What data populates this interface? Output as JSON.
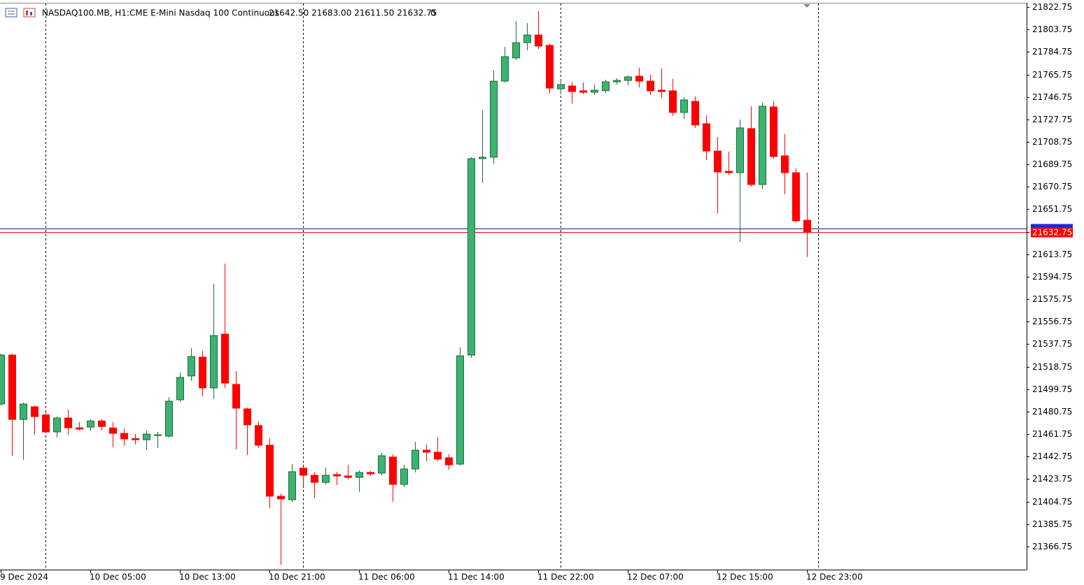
{
  "header": {
    "symbol": "NASDAQ100.MB, H1:",
    "description": "CME E-Mini Nasdaq 100 Continuous",
    "quote": "21642.50 21683.00 21611.50 21632.75",
    "volume": "0"
  },
  "chart_data": {
    "type": "candlestick",
    "up_color": "#3cb371",
    "down_color": "#ff0000",
    "categories": [
      "9 Dec 2024",
      null,
      null,
      null,
      null,
      null,
      null,
      null,
      "10 Dec 05:00",
      null,
      null,
      null,
      null,
      null,
      null,
      null,
      "10 Dec 13:00",
      null,
      null,
      null,
      null,
      null,
      null,
      null,
      "10 Dec 21:00",
      null,
      null,
      null,
      null,
      null,
      null,
      null,
      "11 Dec 06:00",
      null,
      null,
      null,
      null,
      null,
      null,
      null,
      "11 Dec 14:00",
      null,
      null,
      null,
      null,
      null,
      null,
      null,
      "11 Dec 22:00",
      null,
      null,
      null,
      null,
      null,
      null,
      null,
      "12 Dec 07:00",
      null,
      null,
      null,
      null,
      null,
      null,
      null,
      "12 Dec 15:00",
      null,
      null,
      null,
      null,
      null,
      null,
      null,
      "12 Dec 23:00"
    ],
    "open": [
      21487.2,
      21528.6,
      21474.2,
      21484.9,
      21478,
      21463.6,
      21475.4,
      21467.1,
      21467.7,
      21472.9,
      21467,
      21462.4,
      21458,
      21457,
      21460.6,
      21460,
      21490.8,
      21510.9,
      21526.8,
      21500.8,
      21546.3,
      21503.8,
      21483.1,
      21469,
      21452.4,
      21409.3,
      21406.3,
      21433,
      21427,
      21421,
      21427.6,
      21426.4,
      21425.2,
      21429.4,
      21428.8,
      21442.4,
      21419.3,
      21432.3,
      21448.2,
      21446.5,
      21441.8,
      21436.4,
      21528.6,
      21694.6,
      21695.8,
      21760.1,
      21779.7,
      21792.6,
      21799.1,
      21790.3,
      21753.6,
      21756,
      21751.9,
      21750.7,
      21752,
      21759.5,
      21760.7,
      21764.3,
      21760.1,
      21752.5,
      21751.9,
      21733.6,
      21743,
      21724.1,
      21701,
      21683.9,
      21682.7,
      21720,
      21672.7,
      21738.3,
      21697,
      21682.7,
      21642.5
    ],
    "high": [
      21529.8,
      21529.8,
      21488.4,
      21486,
      21480,
      21476.6,
      21482.5,
      21471.9,
      21474.3,
      21474.3,
      21471.9,
      21466.5,
      21462,
      21464.8,
      21463.6,
      21493.1,
      21513.8,
      21534.5,
      21532.2,
      21588.8,
      21606,
      21515,
      21484.3,
      21472.5,
      21458.3,
      21411.6,
      21436.4,
      21434,
      21429.4,
      21433.5,
      21429.9,
      21435.8,
      21431.1,
      21430.5,
      21445.9,
      21444.7,
      21435.8,
      21455.3,
      21453,
      21458.9,
      21444.7,
      21535,
      21695.8,
      21735.4,
      21769,
      21789.1,
      21810.9,
      21809.2,
      21819.2,
      21791.4,
      21761.3,
      21759.5,
      21758.9,
      21757.2,
      21761.3,
      21762.5,
      21764.9,
      21771.4,
      21765.5,
      21770.8,
      21762,
      21746.6,
      21747,
      21731.2,
      21712.9,
      21700.5,
      21727.6,
      21738.9,
      21741.8,
      21743,
      21715.3,
      21686.2,
      21683
    ],
    "low": [
      21486,
      21443.5,
      21440,
      21461,
      21462.4,
      21459,
      21461,
      21464.8,
      21464.8,
      21465,
      21450.6,
      21452,
      21453,
      21448.2,
      21450,
      21458.9,
      21489,
      21506.7,
      21493.7,
      21491.4,
      21500.8,
      21448.8,
      21444.1,
      21450,
      21399.3,
      21351.4,
      21404.5,
      21417.5,
      21407.5,
      21419.3,
      21418.7,
      21423.4,
      21412.8,
      21426.4,
      21427,
      21404.5,
      21417,
      21429.4,
      21438.8,
      21438.8,
      21431.7,
      21435.2,
      21526.2,
      21673.9,
      21690.4,
      21759,
      21777.9,
      21786.1,
      21787.3,
      21749.5,
      21748.9,
      21741.2,
      21749,
      21748.3,
      21750,
      21757.2,
      21756.6,
      21754.8,
      21748.3,
      21745.9,
      21730.6,
      21728.2,
      21720.6,
      21693.4,
      21648.5,
      21681,
      21624.3,
      21671,
      21669,
      21694.6,
      21664.4,
      21640.8,
      21611.5
    ],
    "close": [
      21528.6,
      21474.2,
      21487.2,
      21476.6,
      21463.6,
      21475.4,
      21467.1,
      21466,
      21472.9,
      21468.2,
      21462.4,
      21457.7,
      21457,
      21461.8,
      21461.2,
      21489.6,
      21509.7,
      21527.4,
      21500.8,
      21545.1,
      21504.9,
      21483.7,
      21469.6,
      21452.4,
      21409.3,
      21407,
      21430,
      21427,
      21421,
      21427,
      21426.4,
      21425.2,
      21429.4,
      21428.2,
      21443.5,
      21419.3,
      21432.3,
      21448.2,
      21446.5,
      21440.6,
      21435.8,
      21528,
      21694.6,
      21695.8,
      21760.1,
      21780.8,
      21792.6,
      21799.1,
      21789.7,
      21754.2,
      21757.2,
      21751.3,
      21750.7,
      21752.5,
      21759.5,
      21760.7,
      21763.7,
      21760.1,
      21751.9,
      21751.3,
      21733.6,
      21744.2,
      21723,
      21701,
      21683.3,
      21682.7,
      21720.6,
      21672.7,
      21738.9,
      21696.4,
      21682.7,
      21642,
      21632.75
    ],
    "ylim": [
      21347.25,
      21828.66
    ],
    "yticks": [
      21822.75,
      21803.75,
      21784.75,
      21765.75,
      21746.75,
      21727.75,
      21708.75,
      21689.75,
      21670.75,
      21651.75,
      21632.75,
      21613.75,
      21594.75,
      21575.75,
      21556.75,
      21537.75,
      21518.75,
      21499.75,
      21480.75,
      21461.75,
      21442.75,
      21423.75,
      21404.75,
      21385.75,
      21366.75
    ],
    "last_price": 21632.75,
    "last_price_color": "#ff0000",
    "ask_line": 21635.4,
    "ask_line_color": "#1a1a6e"
  }
}
